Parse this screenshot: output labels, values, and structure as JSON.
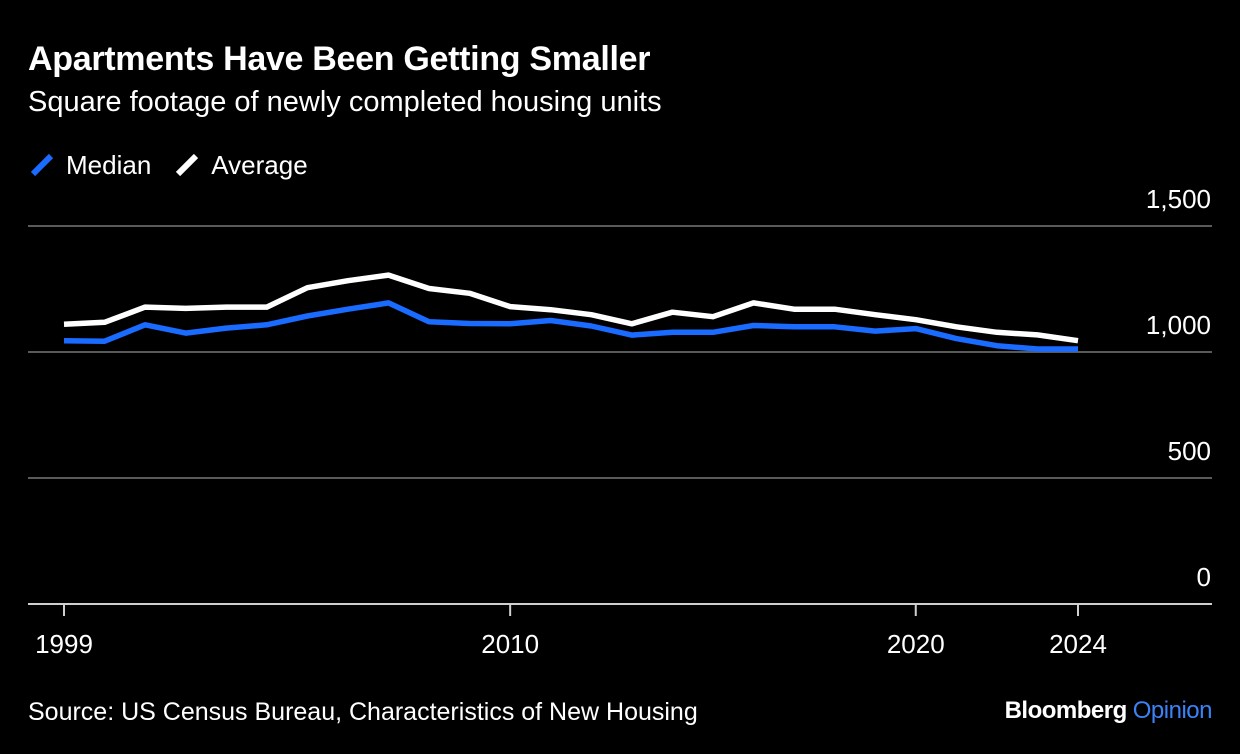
{
  "title": "Apartments Have Been Getting Smaller",
  "subtitle": "Square footage of newly completed housing units",
  "source": "Source: US Census Bureau, Characteristics of New Housing",
  "brand": {
    "name": "Bloomberg",
    "accent": "Opinion",
    "accent_color": "#3b82f6"
  },
  "colors": {
    "median": "#1a6bff",
    "average": "#ffffff",
    "grid": "#5a5a5a",
    "background": "#000000"
  },
  "legend": [
    {
      "label": "Median",
      "color": "#1a6bff"
    },
    {
      "label": "Average",
      "color": "#ffffff"
    }
  ],
  "chart_data": {
    "type": "line",
    "xlim": [
      1999,
      2024
    ],
    "ylim": [
      0,
      1500
    ],
    "x_ticks": [
      {
        "value": 1999,
        "label": "1999"
      },
      {
        "value": 2010,
        "label": "2010"
      },
      {
        "value": 2020,
        "label": "2020"
      },
      {
        "value": 2024,
        "label": "2024"
      }
    ],
    "y_ticks": [
      {
        "value": 0,
        "label": "0"
      },
      {
        "value": 500,
        "label": "500"
      },
      {
        "value": 1000,
        "label": "1,000"
      },
      {
        "value": 1500,
        "label": "1,500"
      }
    ],
    "y_axis_position": "right",
    "grid": true,
    "legend_position": "top-left",
    "x": [
      1999,
      2000,
      2001,
      2002,
      2003,
      2004,
      2005,
      2006,
      2007,
      2008,
      2009,
      2010,
      2011,
      2012,
      2013,
      2014,
      2015,
      2016,
      2017,
      2018,
      2019,
      2020,
      2021,
      2022,
      2023,
      2024
    ],
    "series": [
      {
        "name": "Median",
        "color": "#1a6bff",
        "values": [
          1045,
          1043,
          1108,
          1075,
          1095,
          1108,
          1143,
          1170,
          1195,
          1120,
          1113,
          1112,
          1125,
          1103,
          1067,
          1078,
          1078,
          1105,
          1100,
          1100,
          1083,
          1093,
          1053,
          1025,
          1012,
          1012
        ]
      },
      {
        "name": "Average",
        "color": "#ffffff",
        "values": [
          1110,
          1118,
          1178,
          1173,
          1178,
          1178,
          1255,
          1283,
          1305,
          1252,
          1233,
          1180,
          1168,
          1148,
          1112,
          1158,
          1140,
          1195,
          1170,
          1170,
          1148,
          1128,
          1100,
          1078,
          1068,
          1045
        ]
      }
    ]
  }
}
